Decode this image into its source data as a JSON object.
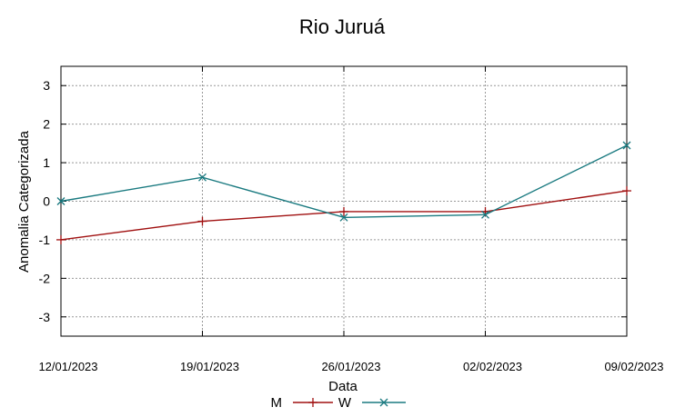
{
  "chart_data": {
    "type": "line",
    "title": "Rio Juruá",
    "xlabel": "Data",
    "ylabel": "Anomalia Categorizada",
    "categories": [
      "12/01/2023",
      "19/01/2023",
      "26/01/2023",
      "02/02/2023",
      "09/02/2023"
    ],
    "ylim": [
      -3.5,
      3.5
    ],
    "yticks": [
      3,
      2,
      1,
      0,
      -1,
      -2,
      -3
    ],
    "ytick_labels": [
      "3",
      "2",
      "1",
      "0",
      "-1",
      "-2",
      "-3"
    ],
    "grid": true,
    "legend_position": "bottom",
    "series": [
      {
        "name": "M",
        "color": "#a01010",
        "marker": "plus",
        "values": [
          -1.0,
          -0.52,
          -0.27,
          -0.27,
          0.27
        ]
      },
      {
        "name": "W",
        "color": "#1a7a80",
        "marker": "x",
        "values": [
          0.0,
          0.62,
          -0.42,
          -0.35,
          1.45
        ]
      }
    ]
  }
}
